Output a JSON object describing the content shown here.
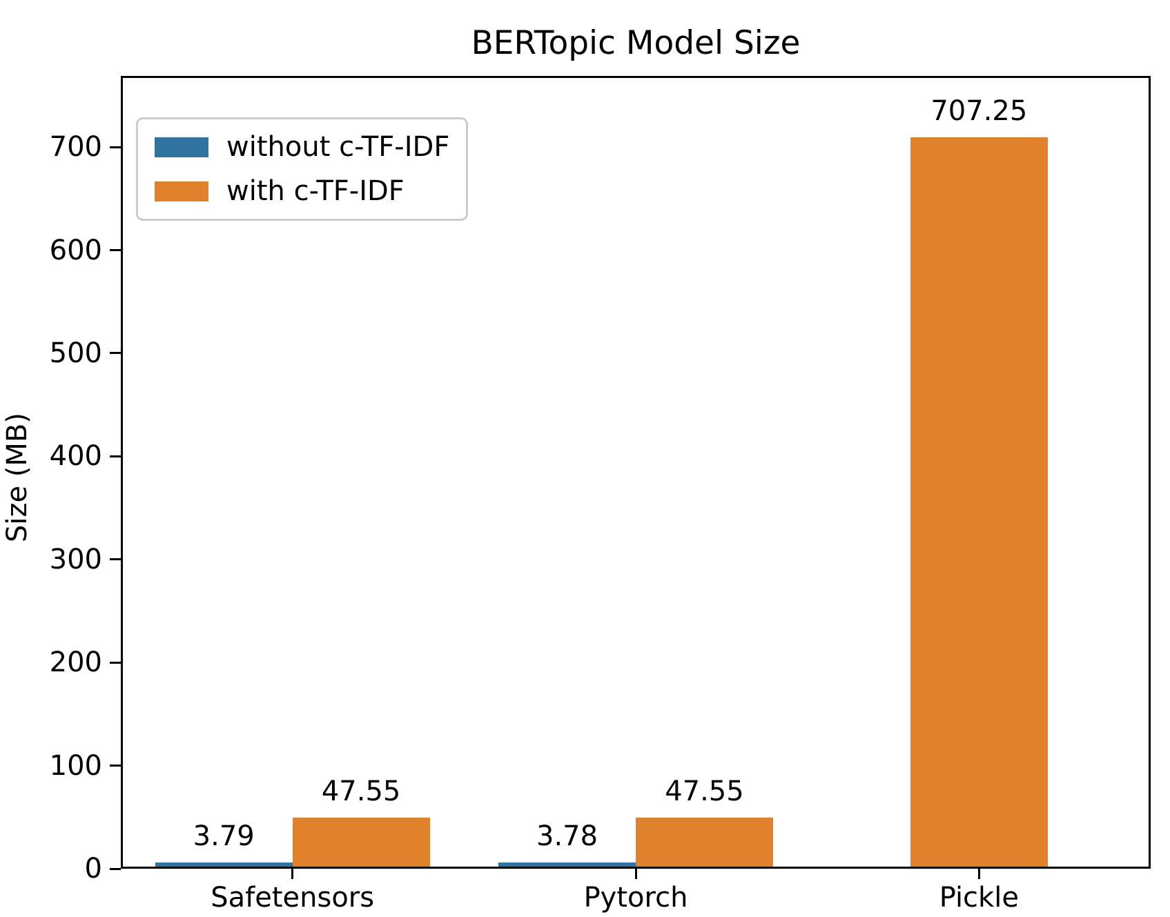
{
  "figure": {
    "background": "#ffffff",
    "axis_color": "#000000",
    "text_color": "#000000"
  },
  "chart_data": {
    "type": "bar",
    "title": "BERTopic Model Size",
    "xlabel": "",
    "ylabel": "Size (MB)",
    "categories": [
      "Safetensors",
      "Pytorch",
      "Pickle"
    ],
    "series": [
      {
        "name": "without c-TF-IDF",
        "color": "#3274a1",
        "values": [
          3.79,
          3.78,
          null
        ],
        "labels": [
          "3.79",
          "3.78",
          null
        ]
      },
      {
        "name": "with c-TF-IDF",
        "color": "#e1812c",
        "values": [
          47.55,
          47.55,
          707.25
        ],
        "labels": [
          "47.55",
          "47.55",
          "707.25"
        ]
      }
    ],
    "ylim": [
      0,
      769
    ],
    "yticks": [
      0,
      100,
      200,
      300,
      400,
      500,
      600,
      700
    ],
    "ytick_labels": [
      "0",
      "100",
      "200",
      "300",
      "400",
      "500",
      "600",
      "700"
    ],
    "grid": false,
    "bar_value_labels": true,
    "legend": {
      "position": "upper left",
      "entries": [
        "without c-TF-IDF",
        "with c-TF-IDF"
      ],
      "border_color": "#cccccc"
    }
  }
}
